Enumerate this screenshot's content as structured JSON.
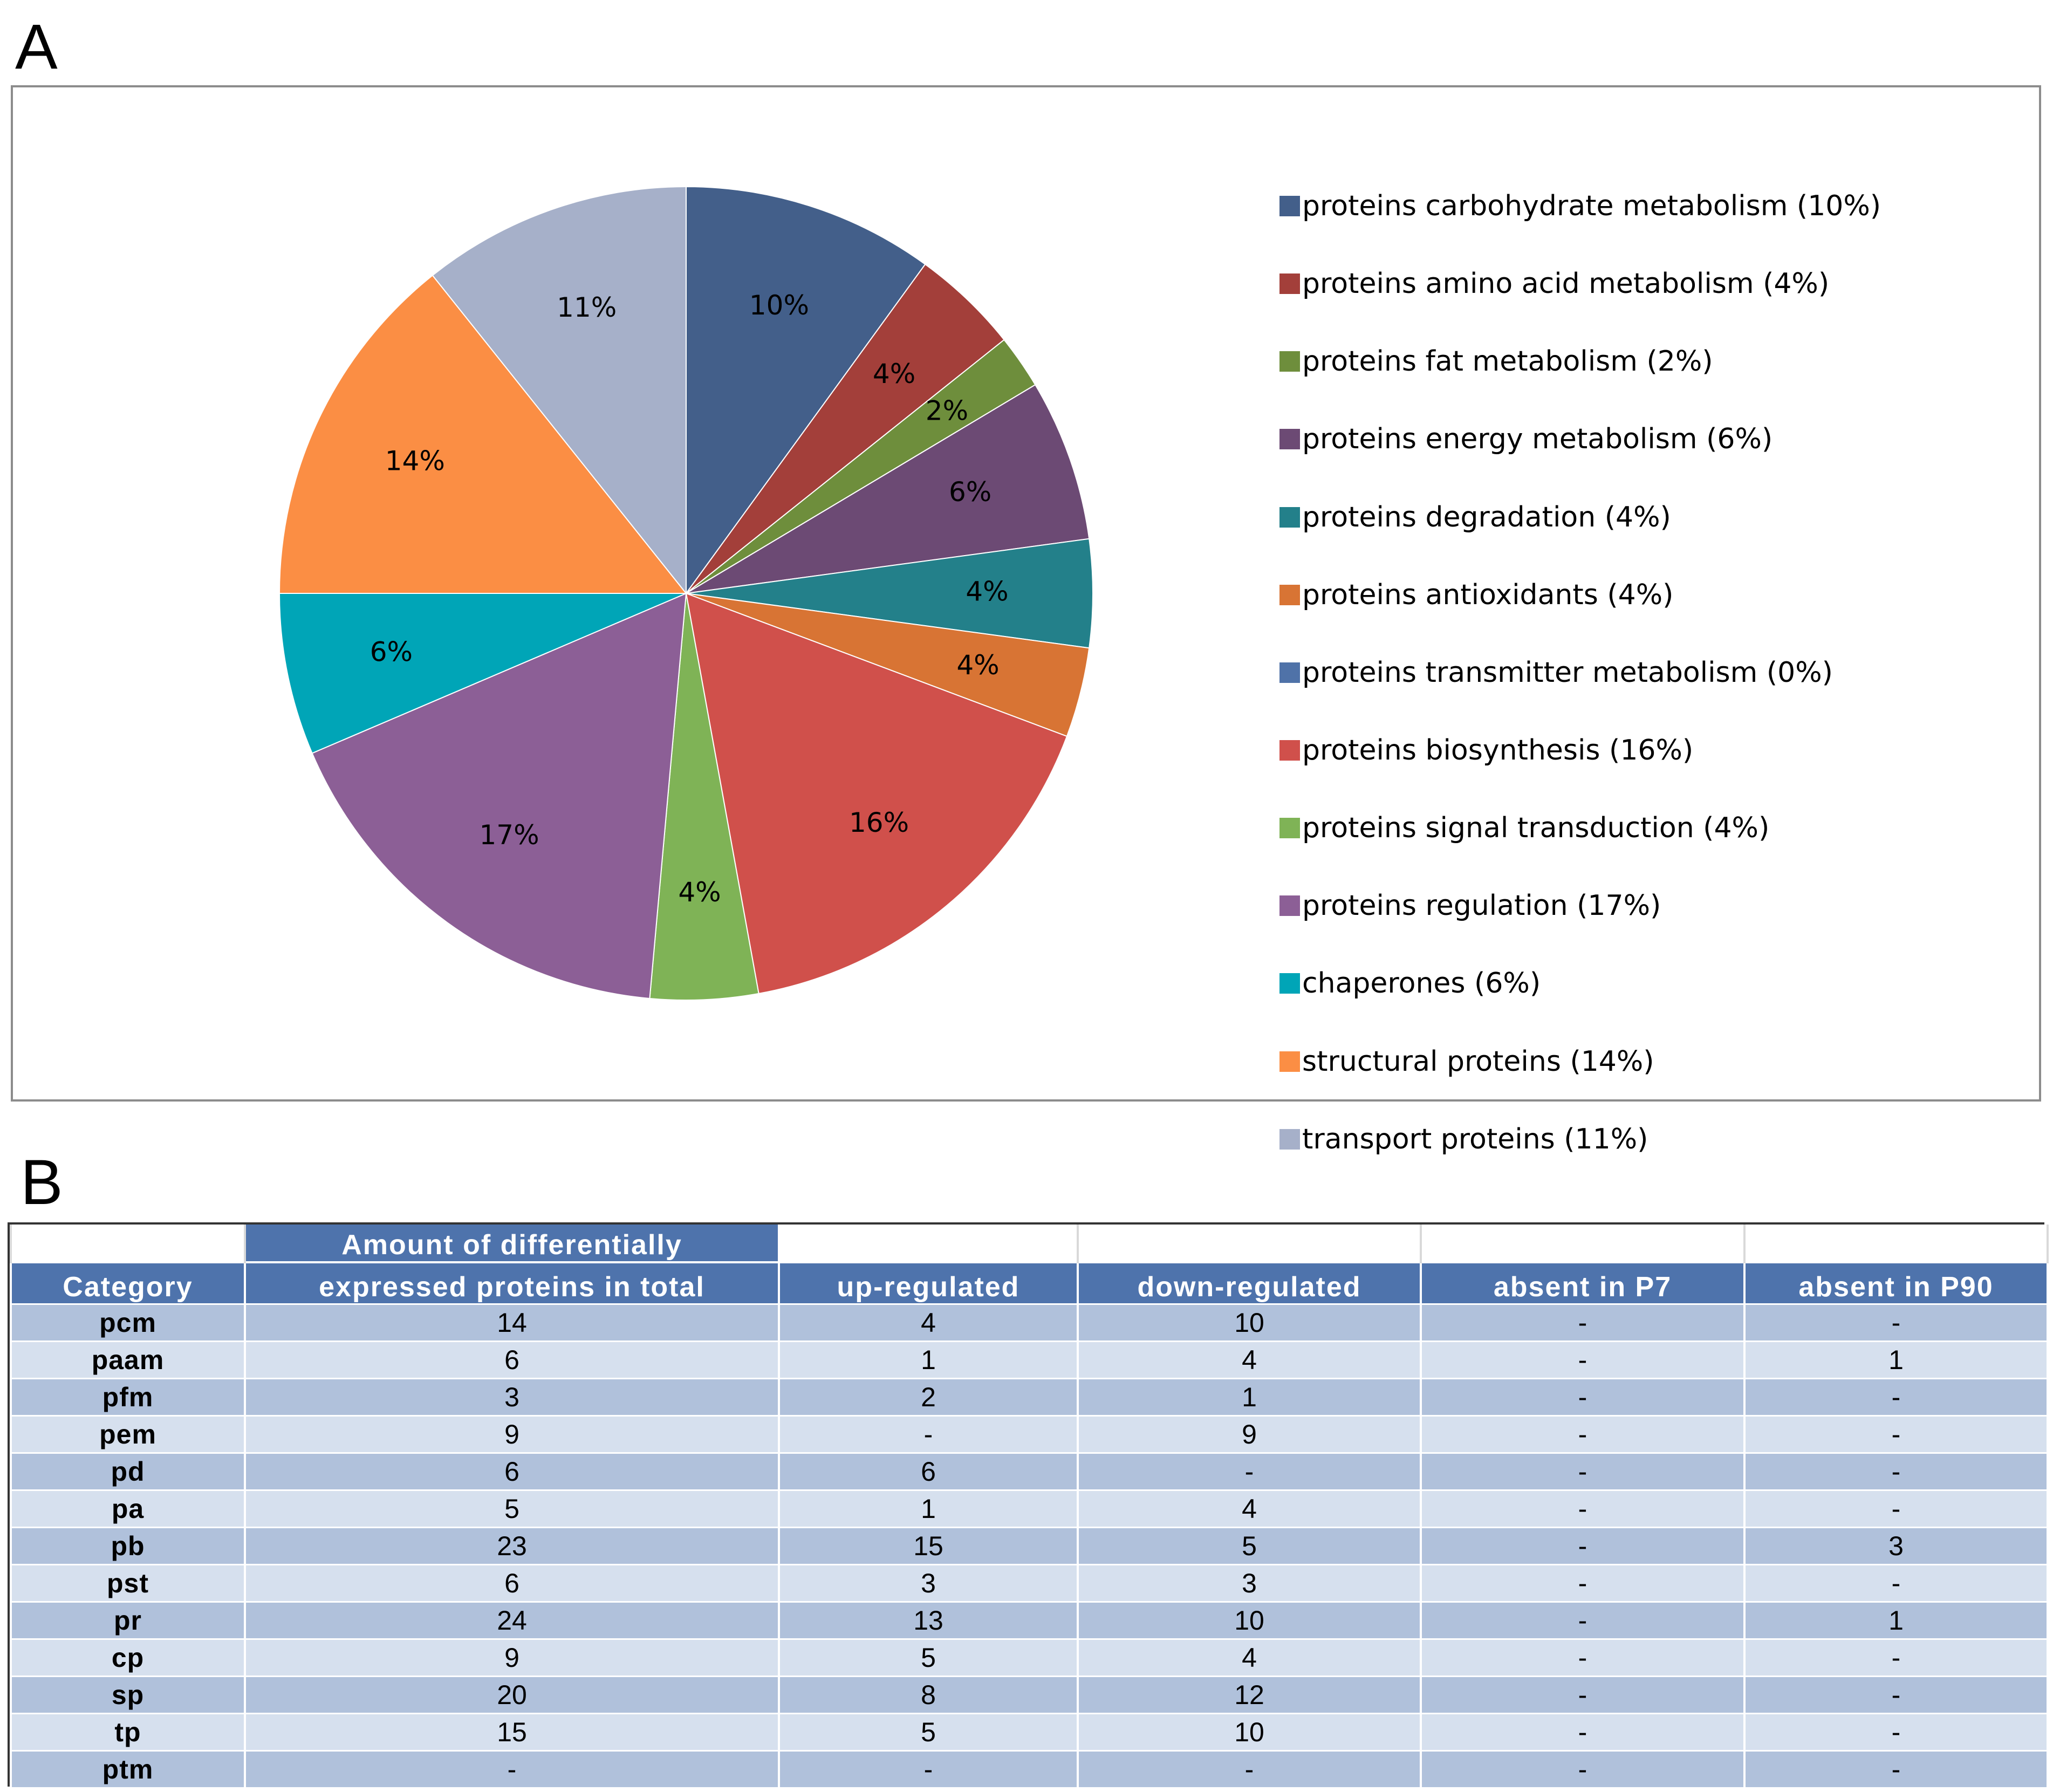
{
  "panel_labels": {
    "a": "A",
    "b": "B"
  },
  "chart_data": {
    "type": "pie",
    "title": "",
    "legend_position": "right",
    "slices": [
      {
        "label": "proteins carbohydrate metabolism",
        "legend": "proteins carbohydrate metabolism  (10%)",
        "value": 14,
        "percent_label": "10%",
        "color": "#435f8a"
      },
      {
        "label": "proteins amino acid metabolism",
        "legend": "proteins amino  acid metabolism  (4%)",
        "value": 6,
        "percent_label": "4%",
        "color": "#a33f3a"
      },
      {
        "label": "proteins fat metabolism",
        "legend": "proteins fat metabolism  (2%)",
        "value": 3,
        "percent_label": "2%",
        "color": "#6e8e3c"
      },
      {
        "label": "proteins energy metabolism",
        "legend": "proteins energy metabolism  (6%)",
        "value": 9,
        "percent_label": "6%",
        "color": "#6c4a74"
      },
      {
        "label": "proteins degradation",
        "legend": "proteins degradation  (4%)",
        "value": 6,
        "percent_label": "4%",
        "color": "#23808a"
      },
      {
        "label": "proteins antioxidants",
        "legend": "proteins antioxidants  (4%)",
        "value": 5,
        "percent_label": "4%",
        "color": "#d87434"
      },
      {
        "label": "proteins transmitter metabolism",
        "legend": "proteins transmitter  metabolism  (0%)",
        "value": 0,
        "percent_label": "",
        "color": "#4f72a8"
      },
      {
        "label": "proteins biosynthesis",
        "legend": "proteins biosynthesis  (16%)",
        "value": 23,
        "percent_label": "16%",
        "color": "#d0504b"
      },
      {
        "label": "proteins signal transduction",
        "legend": "proteins signal transduction  (4%)",
        "value": 6,
        "percent_label": "4%",
        "color": "#7fb356"
      },
      {
        "label": "proteins regulation",
        "legend": "proteins regulation  (17%)",
        "value": 24,
        "percent_label": "17%",
        "color": "#8c5f96"
      },
      {
        "label": "chaperones",
        "legend": "chaperones (6%)",
        "value": 9,
        "percent_label": "6%",
        "color": "#00a5b7"
      },
      {
        "label": "structural proteins",
        "legend": "structural proteins (14%)",
        "value": 20,
        "percent_label": "14%",
        "color": "#fb8e44"
      },
      {
        "label": "transport proteins",
        "legend": "transport proteins (11%)",
        "value": 15,
        "percent_label": "11%",
        "color": "#a6b0c9"
      }
    ]
  },
  "table": {
    "top_header": {
      "total_part1": "Amount of differentially"
    },
    "headers": {
      "category": "Category",
      "total": "expressed proteins in total",
      "up": "up-regulated",
      "down": "down-regulated",
      "absent_p7": "absent in P7",
      "absent_p90": "absent in P90"
    },
    "rows": [
      [
        "pcm",
        "14",
        "4",
        "10",
        "-",
        "-"
      ],
      [
        "paam",
        "6",
        "1",
        "4",
        "-",
        "1"
      ],
      [
        "pfm",
        "3",
        "2",
        "1",
        "-",
        "-"
      ],
      [
        "pem",
        "9",
        "-",
        "9",
        "-",
        "-"
      ],
      [
        "pd",
        "6",
        "6",
        "-",
        "-",
        "-"
      ],
      [
        "pa",
        "5",
        "1",
        "4",
        "-",
        "-"
      ],
      [
        "pb",
        "23",
        "15",
        "5",
        "-",
        "3"
      ],
      [
        "pst",
        "6",
        "3",
        "3",
        "-",
        "-"
      ],
      [
        "pr",
        "24",
        "13",
        "10",
        "-",
        "1"
      ],
      [
        "cp",
        "9",
        "5",
        "4",
        "-",
        "-"
      ],
      [
        "sp",
        "20",
        "8",
        "12",
        "-",
        "-"
      ],
      [
        "tp",
        "15",
        "5",
        "10",
        "-",
        "-"
      ],
      [
        "ptm",
        "-",
        "-",
        "-",
        "-",
        "-"
      ]
    ]
  }
}
